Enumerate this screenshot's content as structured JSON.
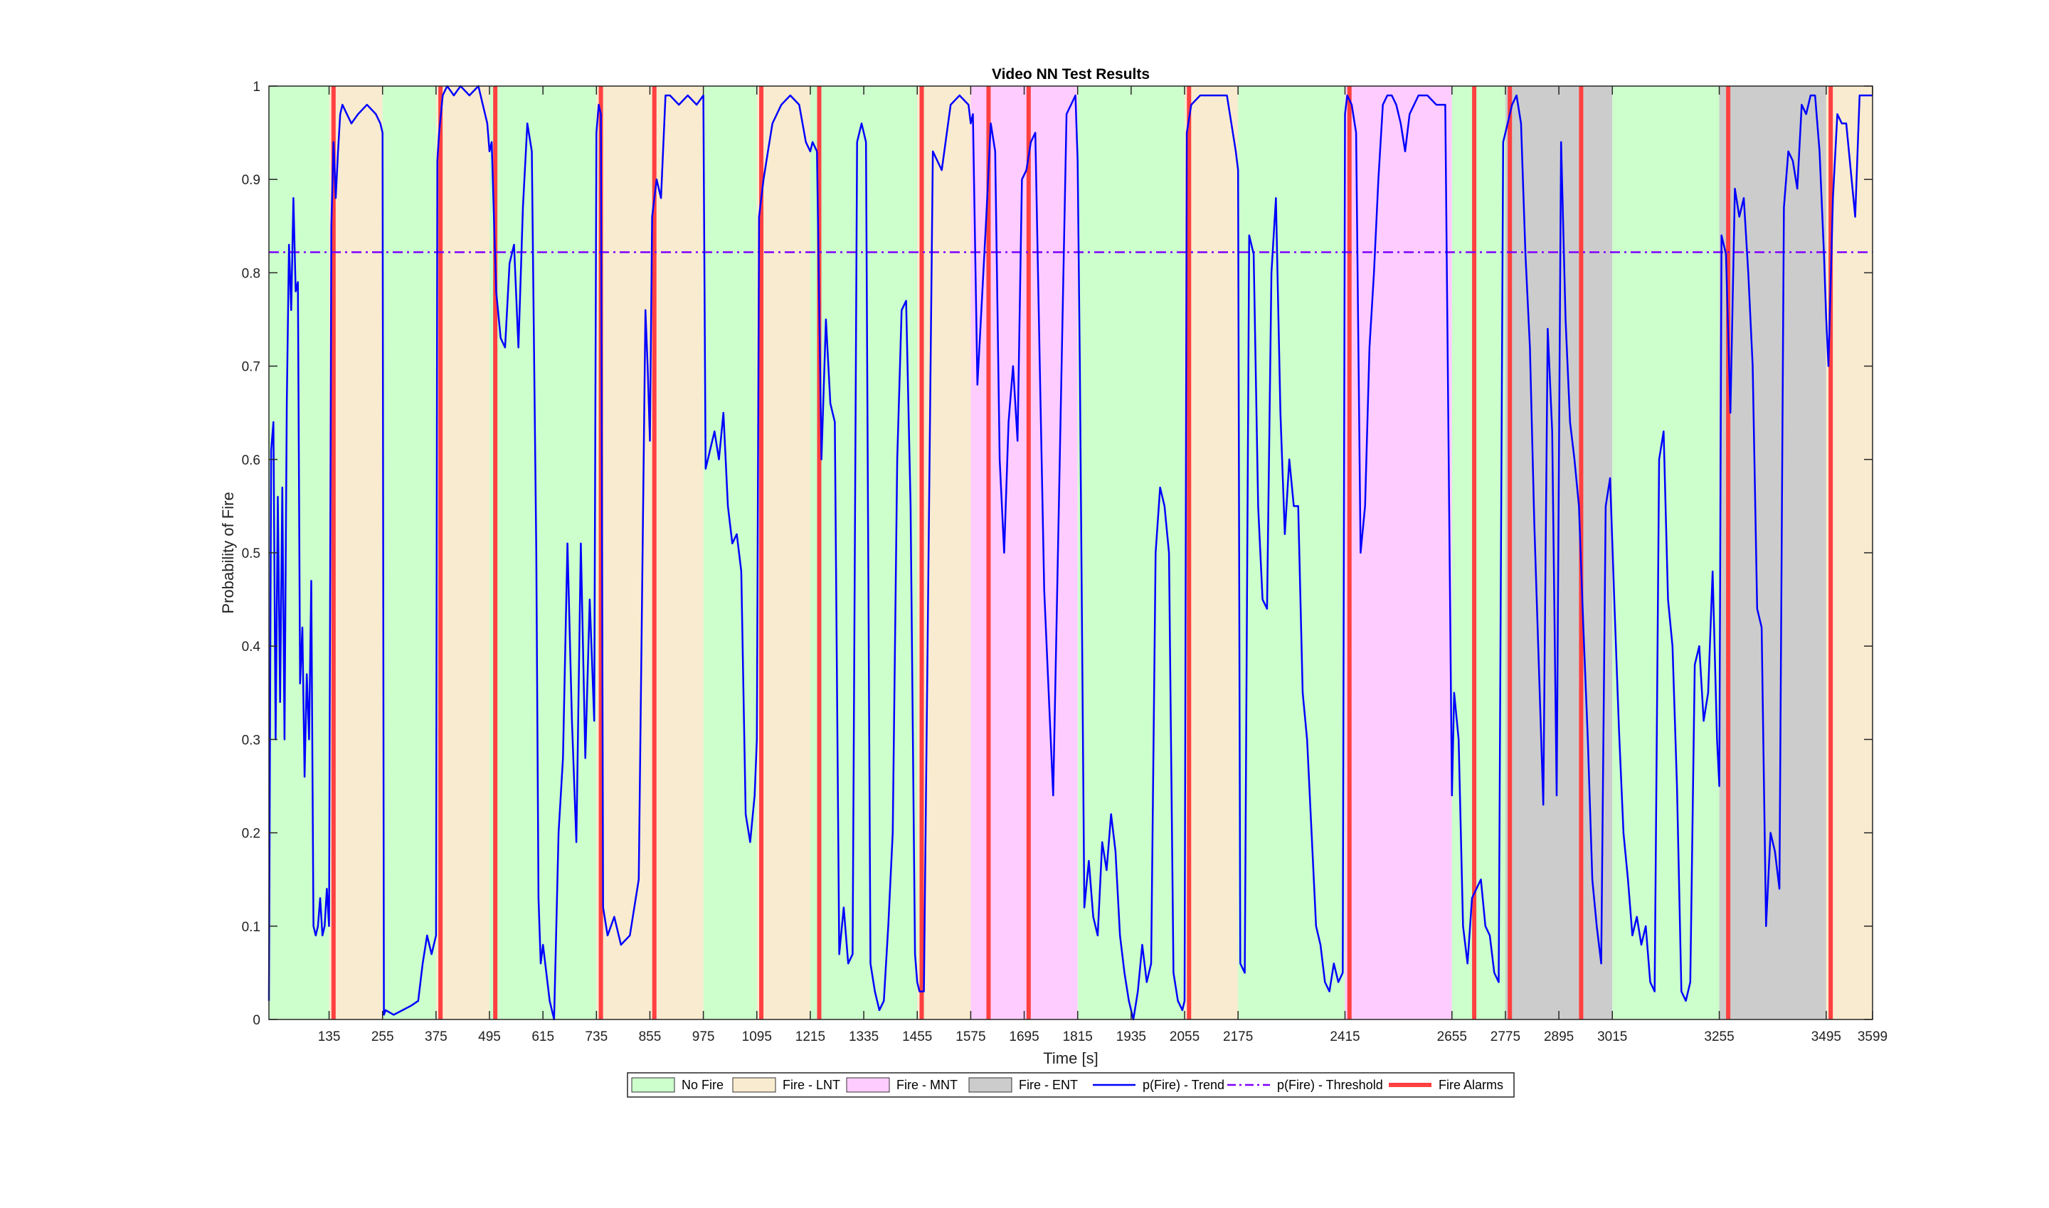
{
  "chart_data": {
    "type": "line",
    "title": "Video NN Test Results",
    "xlabel": "Time [s]",
    "ylabel": "Probability of Fire",
    "xlim": [
      0,
      3599
    ],
    "ylim": [
      0,
      1
    ],
    "x_ticks": [
      135,
      255,
      375,
      495,
      615,
      735,
      855,
      975,
      1095,
      1215,
      1335,
      1455,
      1575,
      1695,
      1815,
      1935,
      2055,
      2175,
      2415,
      2655,
      2775,
      2895,
      3015,
      3255,
      3495,
      3599
    ],
    "y_ticks": [
      0,
      0.1,
      0.2,
      0.3,
      0.4,
      0.5,
      0.6,
      0.7,
      0.8,
      0.9,
      1
    ],
    "y_tick_labels": [
      "0",
      "0.1",
      "0.2",
      "0.3",
      "0.4",
      "0.5",
      "0.6",
      "0.7",
      "0.8",
      "0.9",
      "1"
    ],
    "grid": false,
    "legend_position": "bottom-outside",
    "colors": {
      "no_fire": "#ccffcc",
      "fire_lnt": "#f9ebcf",
      "fire_mnt": "#ffccff",
      "fire_ent": "#cccccc",
      "trend": "#0000ff",
      "threshold": "#7f00ff",
      "alarm": "#ff4040"
    },
    "legend": [
      {
        "label": "No Fire",
        "kind": "patch",
        "color": "#ccffcc"
      },
      {
        "label": "Fire - LNT",
        "kind": "patch",
        "color": "#f9ebcf"
      },
      {
        "label": "Fire - MNT",
        "kind": "patch",
        "color": "#ffccff"
      },
      {
        "label": "Fire - ENT",
        "kind": "patch",
        "color": "#cccccc"
      },
      {
        "label": "p(Fire) - Trend",
        "kind": "line",
        "color": "#0000ff"
      },
      {
        "label": "p(Fire) - Threshold",
        "kind": "dashdot",
        "color": "#7f00ff"
      },
      {
        "label": "Fire Alarms",
        "kind": "thick",
        "color": "#ff4040"
      }
    ],
    "regions": [
      {
        "start": 0,
        "end": 135,
        "class": "No Fire"
      },
      {
        "start": 135,
        "end": 255,
        "class": "Fire - LNT"
      },
      {
        "start": 255,
        "end": 375,
        "class": "No Fire"
      },
      {
        "start": 375,
        "end": 495,
        "class": "Fire - LNT"
      },
      {
        "start": 495,
        "end": 735,
        "class": "No Fire"
      },
      {
        "start": 735,
        "end": 855,
        "class": "Fire - LNT"
      },
      {
        "start": 855,
        "end": 975,
        "class": "Fire - LNT"
      },
      {
        "start": 975,
        "end": 1095,
        "class": "No Fire"
      },
      {
        "start": 1095,
        "end": 1215,
        "class": "Fire - LNT"
      },
      {
        "start": 1215,
        "end": 1455,
        "class": "No Fire"
      },
      {
        "start": 1455,
        "end": 1575,
        "class": "Fire - LNT"
      },
      {
        "start": 1575,
        "end": 1815,
        "class": "Fire - MNT"
      },
      {
        "start": 1815,
        "end": 2055,
        "class": "No Fire"
      },
      {
        "start": 2055,
        "end": 2175,
        "class": "Fire - LNT"
      },
      {
        "start": 2175,
        "end": 2415,
        "class": "No Fire"
      },
      {
        "start": 2415,
        "end": 2655,
        "class": "Fire - MNT"
      },
      {
        "start": 2655,
        "end": 2775,
        "class": "No Fire"
      },
      {
        "start": 2775,
        "end": 3015,
        "class": "Fire - ENT"
      },
      {
        "start": 3015,
        "end": 3255,
        "class": "No Fire"
      },
      {
        "start": 3255,
        "end": 3495,
        "class": "Fire - ENT"
      },
      {
        "start": 3495,
        "end": 3599,
        "class": "Fire - LNT"
      }
    ],
    "alarms": [
      145,
      385,
      508,
      745,
      865,
      1105,
      1235,
      1465,
      1615,
      1705,
      2065,
      2425,
      2705,
      2785,
      2945,
      3275,
      3505
    ],
    "threshold": 0.822,
    "series": [
      {
        "name": "p(Fire) - Trend",
        "x": [
          0,
          5,
          10,
          15,
          20,
          25,
          30,
          35,
          40,
          45,
          50,
          55,
          60,
          65,
          70,
          75,
          80,
          85,
          90,
          95,
          100,
          105,
          110,
          115,
          120,
          125,
          130,
          135,
          140,
          145,
          150,
          155,
          160,
          165,
          175,
          185,
          200,
          220,
          240,
          250,
          255,
          258,
          262,
          280,
          300,
          320,
          335,
          345,
          355,
          365,
          375,
          378,
          382,
          390,
          400,
          415,
          430,
          450,
          470,
          490,
          495,
          500,
          510,
          520,
          530,
          540,
          550,
          560,
          570,
          580,
          590,
          600,
          605,
          610,
          615,
          630,
          640,
          650,
          660,
          670,
          680,
          690,
          700,
          710,
          720,
          730,
          735,
          740,
          745,
          750,
          760,
          775,
          790,
          810,
          830,
          845,
          850,
          855,
          860,
          870,
          880,
          890,
          900,
          920,
          940,
          960,
          975,
          980,
          990,
          1000,
          1010,
          1020,
          1030,
          1040,
          1050,
          1060,
          1070,
          1080,
          1090,
          1095,
          1100,
          1110,
          1120,
          1130,
          1150,
          1170,
          1190,
          1205,
          1215,
          1220,
          1230,
          1240,
          1250,
          1260,
          1270,
          1280,
          1290,
          1300,
          1310,
          1320,
          1330,
          1340,
          1350,
          1360,
          1370,
          1380,
          1390,
          1400,
          1410,
          1420,
          1430,
          1440,
          1450,
          1455,
          1460,
          1470,
          1490,
          1510,
          1530,
          1550,
          1570,
          1575,
          1580,
          1590,
          1600,
          1610,
          1620,
          1630,
          1640,
          1650,
          1660,
          1670,
          1680,
          1690,
          1700,
          1710,
          1720,
          1730,
          1740,
          1760,
          1790,
          1810,
          1815,
          1820,
          1830,
          1840,
          1850,
          1860,
          1870,
          1880,
          1890,
          1900,
          1910,
          1920,
          1930,
          1940,
          1950,
          1960,
          1970,
          1980,
          1990,
          2000,
          2010,
          2020,
          2030,
          2040,
          2050,
          2055,
          2060,
          2070,
          2090,
          2120,
          2150,
          2170,
          2175,
          2180,
          2190,
          2200,
          2210,
          2220,
          2230,
          2240,
          2250,
          2260,
          2270,
          2280,
          2290,
          2300,
          2310,
          2320,
          2330,
          2340,
          2350,
          2360,
          2370,
          2380,
          2390,
          2400,
          2410,
          2415,
          2420,
          2430,
          2440,
          2450,
          2460,
          2470,
          2480,
          2490,
          2500,
          2510,
          2520,
          2530,
          2540,
          2550,
          2560,
          2580,
          2600,
          2620,
          2640,
          2655,
          2660,
          2670,
          2680,
          2690,
          2700,
          2710,
          2720,
          2730,
          2740,
          2750,
          2760,
          2770,
          2780,
          2790,
          2800,
          2810,
          2820,
          2830,
          2840,
          2850,
          2860,
          2870,
          2880,
          2890,
          2900,
          2910,
          2920,
          2930,
          2940,
          2950,
          2960,
          2970,
          2980,
          2990,
          3000,
          3010,
          3020,
          3030,
          3040,
          3050,
          3060,
          3070,
          3080,
          3090,
          3100,
          3110,
          3120,
          3130,
          3140,
          3150,
          3160,
          3170,
          3180,
          3190,
          3200,
          3210,
          3220,
          3230,
          3240,
          3250,
          3255,
          3260,
          3270,
          3280,
          3290,
          3300,
          3310,
          3320,
          3330,
          3340,
          3350,
          3360,
          3370,
          3380,
          3390,
          3400,
          3410,
          3420,
          3430,
          3440,
          3450,
          3460,
          3470,
          3480,
          3490,
          3495,
          3500,
          3510,
          3520,
          3530,
          3540,
          3550,
          3560,
          3570,
          3580,
          3590,
          3599
        ],
        "y": [
          0.02,
          0.61,
          0.64,
          0.3,
          0.56,
          0.34,
          0.57,
          0.3,
          0.66,
          0.83,
          0.76,
          0.88,
          0.78,
          0.79,
          0.36,
          0.42,
          0.26,
          0.37,
          0.3,
          0.47,
          0.1,
          0.09,
          0.1,
          0.13,
          0.09,
          0.1,
          0.14,
          0.1,
          0.85,
          0.94,
          0.88,
          0.93,
          0.97,
          0.98,
          0.97,
          0.96,
          0.97,
          0.98,
          0.97,
          0.96,
          0.95,
          0.005,
          0.01,
          0.005,
          0.01,
          0.015,
          0.02,
          0.06,
          0.09,
          0.07,
          0.09,
          0.92,
          0.95,
          0.99,
          1.0,
          0.99,
          1.0,
          0.99,
          1.0,
          0.96,
          0.93,
          0.94,
          0.78,
          0.73,
          0.72,
          0.81,
          0.83,
          0.72,
          0.87,
          0.96,
          0.93,
          0.5,
          0.13,
          0.06,
          0.08,
          0.02,
          0.0,
          0.2,
          0.28,
          0.51,
          0.32,
          0.19,
          0.51,
          0.28,
          0.45,
          0.32,
          0.95,
          0.98,
          0.97,
          0.12,
          0.09,
          0.11,
          0.08,
          0.09,
          0.15,
          0.76,
          0.7,
          0.62,
          0.86,
          0.9,
          0.88,
          0.99,
          0.99,
          0.98,
          0.99,
          0.98,
          0.99,
          0.59,
          0.61,
          0.63,
          0.6,
          0.65,
          0.55,
          0.51,
          0.52,
          0.48,
          0.22,
          0.19,
          0.24,
          0.3,
          0.86,
          0.9,
          0.93,
          0.96,
          0.98,
          0.99,
          0.98,
          0.94,
          0.93,
          0.94,
          0.93,
          0.6,
          0.75,
          0.66,
          0.64,
          0.07,
          0.12,
          0.06,
          0.07,
          0.94,
          0.96,
          0.94,
          0.06,
          0.03,
          0.01,
          0.02,
          0.1,
          0.2,
          0.6,
          0.76,
          0.77,
          0.55,
          0.07,
          0.04,
          0.03,
          0.03,
          0.93,
          0.91,
          0.98,
          0.99,
          0.98,
          0.96,
          0.97,
          0.68,
          0.77,
          0.86,
          0.96,
          0.93,
          0.6,
          0.5,
          0.64,
          0.7,
          0.62,
          0.9,
          0.91,
          0.94,
          0.95,
          0.7,
          0.46,
          0.24,
          0.97,
          0.99,
          0.92,
          0.7,
          0.12,
          0.17,
          0.11,
          0.09,
          0.19,
          0.16,
          0.22,
          0.18,
          0.09,
          0.05,
          0.02,
          0.0,
          0.03,
          0.08,
          0.04,
          0.06,
          0.5,
          0.57,
          0.55,
          0.5,
          0.05,
          0.02,
          0.01,
          0.02,
          0.95,
          0.98,
          0.99,
          0.99,
          0.99,
          0.93,
          0.91,
          0.06,
          0.05,
          0.84,
          0.82,
          0.55,
          0.45,
          0.44,
          0.8,
          0.88,
          0.65,
          0.52,
          0.6,
          0.55,
          0.55,
          0.35,
          0.3,
          0.2,
          0.1,
          0.08,
          0.04,
          0.03,
          0.06,
          0.04,
          0.05,
          0.97,
          0.99,
          0.98,
          0.95,
          0.5,
          0.55,
          0.72,
          0.8,
          0.9,
          0.98,
          0.99,
          0.99,
          0.98,
          0.96,
          0.93,
          0.97,
          0.99,
          0.99,
          0.98,
          0.98,
          0.24,
          0.35,
          0.3,
          0.1,
          0.06,
          0.13,
          0.14,
          0.15,
          0.1,
          0.09,
          0.05,
          0.04,
          0.94,
          0.96,
          0.98,
          0.99,
          0.96,
          0.82,
          0.72,
          0.53,
          0.38,
          0.23,
          0.74,
          0.63,
          0.24,
          0.94,
          0.75,
          0.64,
          0.6,
          0.55,
          0.42,
          0.3,
          0.15,
          0.1,
          0.06,
          0.55,
          0.58,
          0.44,
          0.31,
          0.2,
          0.15,
          0.09,
          0.11,
          0.08,
          0.1,
          0.04,
          0.03,
          0.6,
          0.63,
          0.45,
          0.4,
          0.25,
          0.03,
          0.02,
          0.04,
          0.38,
          0.4,
          0.32,
          0.35,
          0.48,
          0.3,
          0.25,
          0.84,
          0.82,
          0.65,
          0.89,
          0.86,
          0.88,
          0.8,
          0.7,
          0.44,
          0.42,
          0.1,
          0.2,
          0.18,
          0.14,
          0.87,
          0.93,
          0.92,
          0.89,
          0.98,
          0.97,
          0.99,
          0.99,
          0.93,
          0.82,
          0.75,
          0.7,
          0.88,
          0.97,
          0.96,
          0.96,
          0.91,
          0.86,
          0.99,
          0.99,
          0.99,
          0.99
        ]
      }
    ]
  }
}
